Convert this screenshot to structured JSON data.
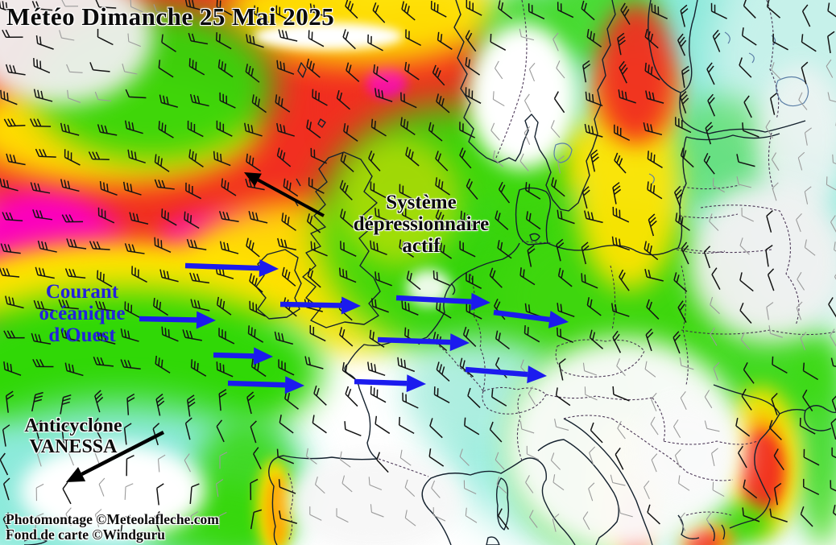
{
  "title": "Météo Dimanche 25 Mai 2025",
  "labels": {
    "depression": {
      "line1": "Système",
      "line2": "dépressionnaire",
      "line3": "actif"
    },
    "ocean_current": {
      "line1": "Courant",
      "line2": "océanique",
      "line3": "d'Ouest"
    },
    "anticyclone": {
      "line1": "Anticyclone",
      "line2": "VANESSA"
    }
  },
  "credits": {
    "photomontage": "Photomontage ©Meteolafleche.com",
    "basemap": "Fond de carte ©Windguru"
  },
  "palette": {
    "storm_magenta": "#fb00be",
    "very_strong_red": "#f12f20",
    "strong_orange": "#ff9d00",
    "fresh_yellow": "#ffe400",
    "moderate_green": "#35d60a",
    "light_cyan": "#8ae9da",
    "calm_white": "#ffffff",
    "arrow_blue": "#1b1bee",
    "annotation_blue": "#2222dd",
    "black_arrow": "#000000",
    "barb_black": "#131313",
    "barb_gray": "#9b9b9b",
    "coast_dark": "#14212e",
    "border_purple": "#3b2547",
    "lake_blue": "#5b7fa6"
  }
}
